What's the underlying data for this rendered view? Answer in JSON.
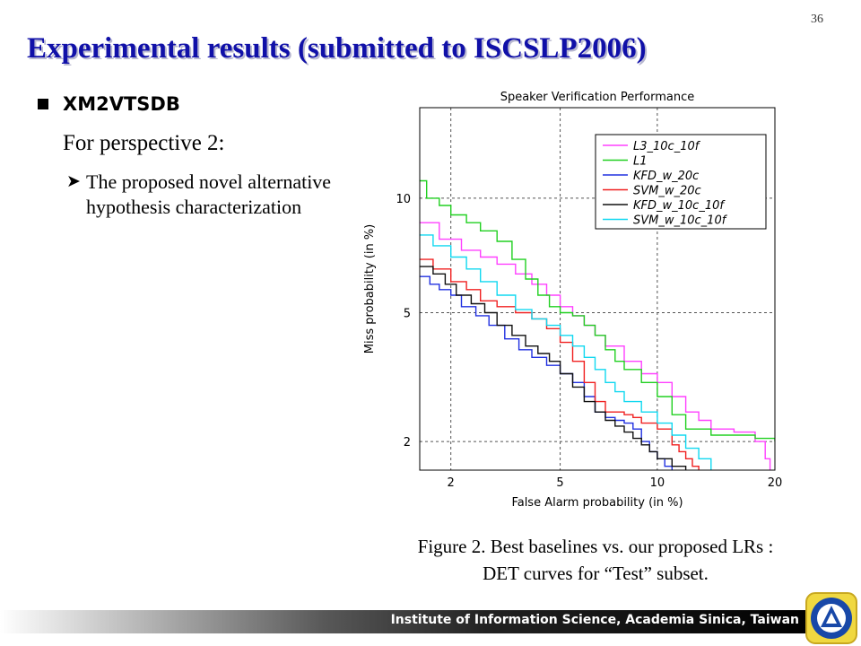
{
  "slide": {
    "number": "36",
    "title": "Experimental results (submitted to ISCSLP2006)",
    "dataset": "XM2VTSDB",
    "subheading": "For perspective 2:",
    "description": "The proposed novel alternative hypothesis characterization",
    "caption_line1": "Figure 2. Best baselines vs. our proposed LRs :",
    "caption_line2": "DET curves for “Test” subset.",
    "footer": "Institute of Information Science, Academia Sinica, Taiwan",
    "logo_icon": "institute-seal-icon"
  },
  "chart_data": {
    "type": "line",
    "title": "Speaker Verification Performance",
    "xlabel": "False Alarm probability (in %)",
    "ylabel": "Miss probability (in %)",
    "x_scale": "probit",
    "y_scale": "probit",
    "xlim": [
      1.5,
      20
    ],
    "ylim": [
      1.6,
      16
    ],
    "xticks": [
      2,
      5,
      10,
      20
    ],
    "yticks": [
      2,
      5,
      10
    ],
    "grid": true,
    "grid_style": "dashed",
    "legend_position": "top-right",
    "series": [
      {
        "name": "L3_10c_10f",
        "color": "#ff40ff",
        "points": [
          [
            1.5,
            8.7
          ],
          [
            1.8,
            7.9
          ],
          [
            2.2,
            7.4
          ],
          [
            2.6,
            7.1
          ],
          [
            3.0,
            6.8
          ],
          [
            3.5,
            6.4
          ],
          [
            4.0,
            6.0
          ],
          [
            4.5,
            5.6
          ],
          [
            5.0,
            5.2
          ],
          [
            5.5,
            4.9
          ],
          [
            6.0,
            4.6
          ],
          [
            6.5,
            4.3
          ],
          [
            7.0,
            4.0
          ],
          [
            8.0,
            3.6
          ],
          [
            9.0,
            3.3
          ],
          [
            10.0,
            3.1
          ],
          [
            11.0,
            2.8
          ],
          [
            12.0,
            2.5
          ],
          [
            13.0,
            2.35
          ],
          [
            14.0,
            2.2
          ],
          [
            16.0,
            2.15
          ],
          [
            18.0,
            2.0
          ],
          [
            19.0,
            1.75
          ],
          [
            19.5,
            1.6
          ]
        ]
      },
      {
        "name": "L1",
        "color": "#20d020",
        "points": [
          [
            1.5,
            11.0
          ],
          [
            1.6,
            10.0
          ],
          [
            1.8,
            9.6
          ],
          [
            2.0,
            9.1
          ],
          [
            2.3,
            8.7
          ],
          [
            2.6,
            8.3
          ],
          [
            3.0,
            7.8
          ],
          [
            3.4,
            7.0
          ],
          [
            3.8,
            6.2
          ],
          [
            4.2,
            5.6
          ],
          [
            4.6,
            5.2
          ],
          [
            5.0,
            5.0
          ],
          [
            5.5,
            4.9
          ],
          [
            6.0,
            4.6
          ],
          [
            6.5,
            4.3
          ],
          [
            7.0,
            3.9
          ],
          [
            7.5,
            3.6
          ],
          [
            8.0,
            3.4
          ],
          [
            9.0,
            3.1
          ],
          [
            10.0,
            2.8
          ],
          [
            11.0,
            2.45
          ],
          [
            12.0,
            2.2
          ],
          [
            14.0,
            2.1
          ],
          [
            16.0,
            2.1
          ],
          [
            18.0,
            2.05
          ],
          [
            20.0,
            2.0
          ]
        ]
      },
      {
        "name": "KFD_w_20c",
        "color": "#2030e0",
        "points": [
          [
            1.5,
            6.3
          ],
          [
            1.65,
            6.0
          ],
          [
            1.8,
            5.8
          ],
          [
            2.0,
            5.6
          ],
          [
            2.2,
            5.2
          ],
          [
            2.5,
            4.9
          ],
          [
            2.8,
            4.6
          ],
          [
            3.2,
            4.2
          ],
          [
            3.6,
            3.9
          ],
          [
            4.0,
            3.7
          ],
          [
            4.5,
            3.5
          ],
          [
            5.0,
            3.3
          ],
          [
            5.5,
            3.1
          ],
          [
            6.0,
            2.8
          ],
          [
            6.5,
            2.5
          ],
          [
            7.0,
            2.4
          ],
          [
            7.5,
            2.35
          ],
          [
            8.0,
            2.3
          ],
          [
            8.5,
            2.2
          ],
          [
            9.0,
            2.0
          ],
          [
            9.5,
            1.85
          ],
          [
            10.0,
            1.75
          ],
          [
            10.5,
            1.65
          ],
          [
            11.0,
            1.6
          ]
        ]
      },
      {
        "name": "SVM_w_20c",
        "color": "#f02020",
        "points": [
          [
            1.5,
            7.0
          ],
          [
            1.7,
            6.6
          ],
          [
            2.0,
            6.1
          ],
          [
            2.3,
            5.8
          ],
          [
            2.6,
            5.4
          ],
          [
            3.0,
            5.2
          ],
          [
            3.5,
            5.0
          ],
          [
            4.0,
            4.8
          ],
          [
            4.5,
            4.5
          ],
          [
            5.0,
            4.1
          ],
          [
            5.5,
            3.6
          ],
          [
            6.0,
            3.1
          ],
          [
            6.5,
            2.7
          ],
          [
            7.0,
            2.5
          ],
          [
            8.0,
            2.45
          ],
          [
            8.5,
            2.4
          ],
          [
            9.0,
            2.3
          ],
          [
            10.0,
            2.2
          ],
          [
            11.0,
            1.95
          ],
          [
            11.5,
            1.85
          ],
          [
            12.0,
            1.75
          ],
          [
            12.5,
            1.65
          ],
          [
            13.0,
            1.6
          ]
        ]
      },
      {
        "name": "KFD_w_10c_10f",
        "color": "#101010",
        "points": [
          [
            1.5,
            6.7
          ],
          [
            1.7,
            6.4
          ],
          [
            1.9,
            6.0
          ],
          [
            2.1,
            5.6
          ],
          [
            2.4,
            5.3
          ],
          [
            2.7,
            5.0
          ],
          [
            3.0,
            4.6
          ],
          [
            3.4,
            4.3
          ],
          [
            3.8,
            4.0
          ],
          [
            4.2,
            3.8
          ],
          [
            4.6,
            3.6
          ],
          [
            5.0,
            3.3
          ],
          [
            5.5,
            3.0
          ],
          [
            6.0,
            2.7
          ],
          [
            6.5,
            2.5
          ],
          [
            7.0,
            2.35
          ],
          [
            7.5,
            2.25
          ],
          [
            8.0,
            2.15
          ],
          [
            8.5,
            2.05
          ],
          [
            9.0,
            1.95
          ],
          [
            9.5,
            1.85
          ],
          [
            10.0,
            1.75
          ],
          [
            11.0,
            1.65
          ],
          [
            12.0,
            1.6
          ]
        ]
      },
      {
        "name": "SVM_w_10c_10f",
        "color": "#10d8f0",
        "points": [
          [
            1.5,
            8.1
          ],
          [
            1.7,
            7.6
          ],
          [
            2.0,
            7.1
          ],
          [
            2.3,
            6.6
          ],
          [
            2.6,
            6.1
          ],
          [
            3.0,
            5.6
          ],
          [
            3.5,
            5.1
          ],
          [
            4.0,
            4.8
          ],
          [
            4.5,
            4.6
          ],
          [
            5.0,
            4.3
          ],
          [
            5.5,
            4.0
          ],
          [
            6.0,
            3.7
          ],
          [
            6.5,
            3.4
          ],
          [
            7.0,
            3.1
          ],
          [
            7.5,
            2.9
          ],
          [
            8.0,
            2.7
          ],
          [
            9.0,
            2.5
          ],
          [
            10.0,
            2.3
          ],
          [
            11.0,
            2.1
          ],
          [
            12.0,
            1.9
          ],
          [
            13.0,
            1.75
          ],
          [
            14.0,
            1.6
          ]
        ]
      }
    ]
  }
}
